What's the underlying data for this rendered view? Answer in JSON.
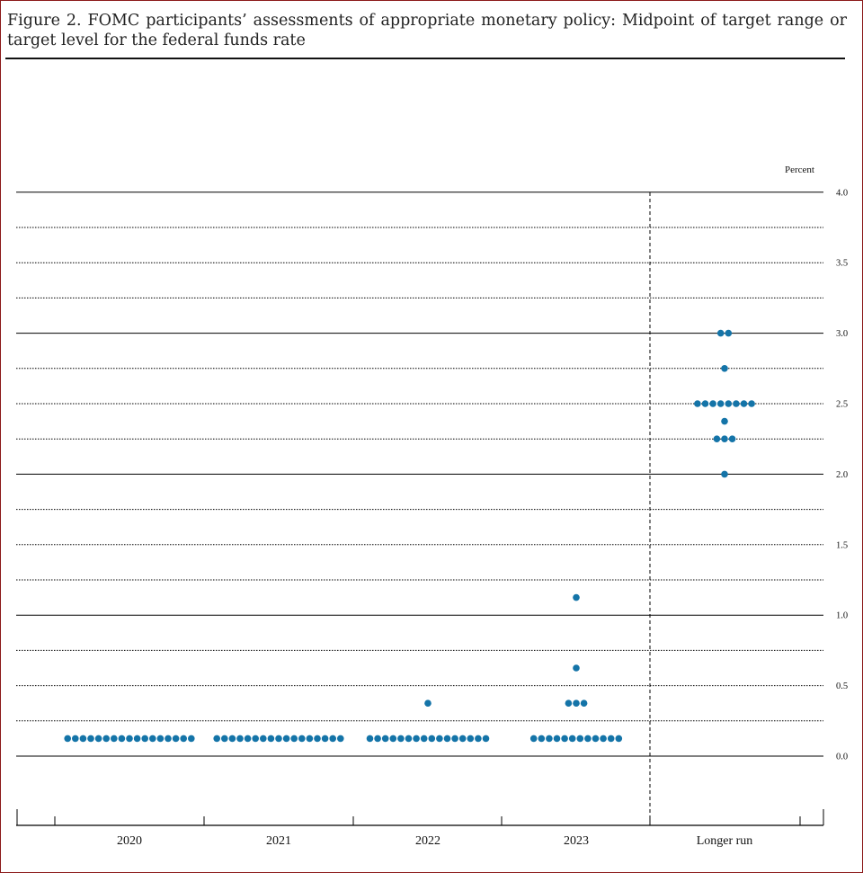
{
  "figure": {
    "title": "Figure 2.  FOMC participants’ assessments of appropriate monetary policy: Midpoint of target range or target level for the federal funds rate"
  },
  "colors": {
    "dot": "#1474a8",
    "frame": "#8b1a1a",
    "grid": "#000000"
  },
  "chart_data": {
    "type": "scatter",
    "subtype": "dot-plot",
    "title": "",
    "xlabel": "",
    "ylabel": "Percent",
    "ylim": [
      -0.5,
      4.0
    ],
    "yticks": [
      0.0,
      0.5,
      1.0,
      1.5,
      2.0,
      2.5,
      3.0,
      3.5,
      4.0
    ],
    "ytick_labels": [
      "0.0",
      "0.5",
      "1.0",
      "1.5",
      "2.0",
      "2.5",
      "3.0",
      "3.5",
      "4.0"
    ],
    "grid_step": 0.25,
    "grid": true,
    "categories": [
      "2020",
      "2021",
      "2022",
      "2023",
      "Longer run"
    ],
    "series": [
      {
        "category": "2020",
        "points": [
          {
            "value": 0.125,
            "count": 17
          }
        ]
      },
      {
        "category": "2021",
        "points": [
          {
            "value": 0.125,
            "count": 17
          }
        ]
      },
      {
        "category": "2022",
        "points": [
          {
            "value": 0.375,
            "count": 1
          },
          {
            "value": 0.125,
            "count": 16
          }
        ]
      },
      {
        "category": "2023",
        "points": [
          {
            "value": 1.125,
            "count": 1
          },
          {
            "value": 0.625,
            "count": 1
          },
          {
            "value": 0.375,
            "count": 3
          },
          {
            "value": 0.125,
            "count": 12
          }
        ]
      },
      {
        "category": "Longer run",
        "points": [
          {
            "value": 3.0,
            "count": 2
          },
          {
            "value": 2.75,
            "count": 1
          },
          {
            "value": 2.5,
            "count": 8
          },
          {
            "value": 2.375,
            "count": 1
          },
          {
            "value": 2.25,
            "count": 3
          },
          {
            "value": 2.0,
            "count": 1
          }
        ]
      }
    ]
  }
}
